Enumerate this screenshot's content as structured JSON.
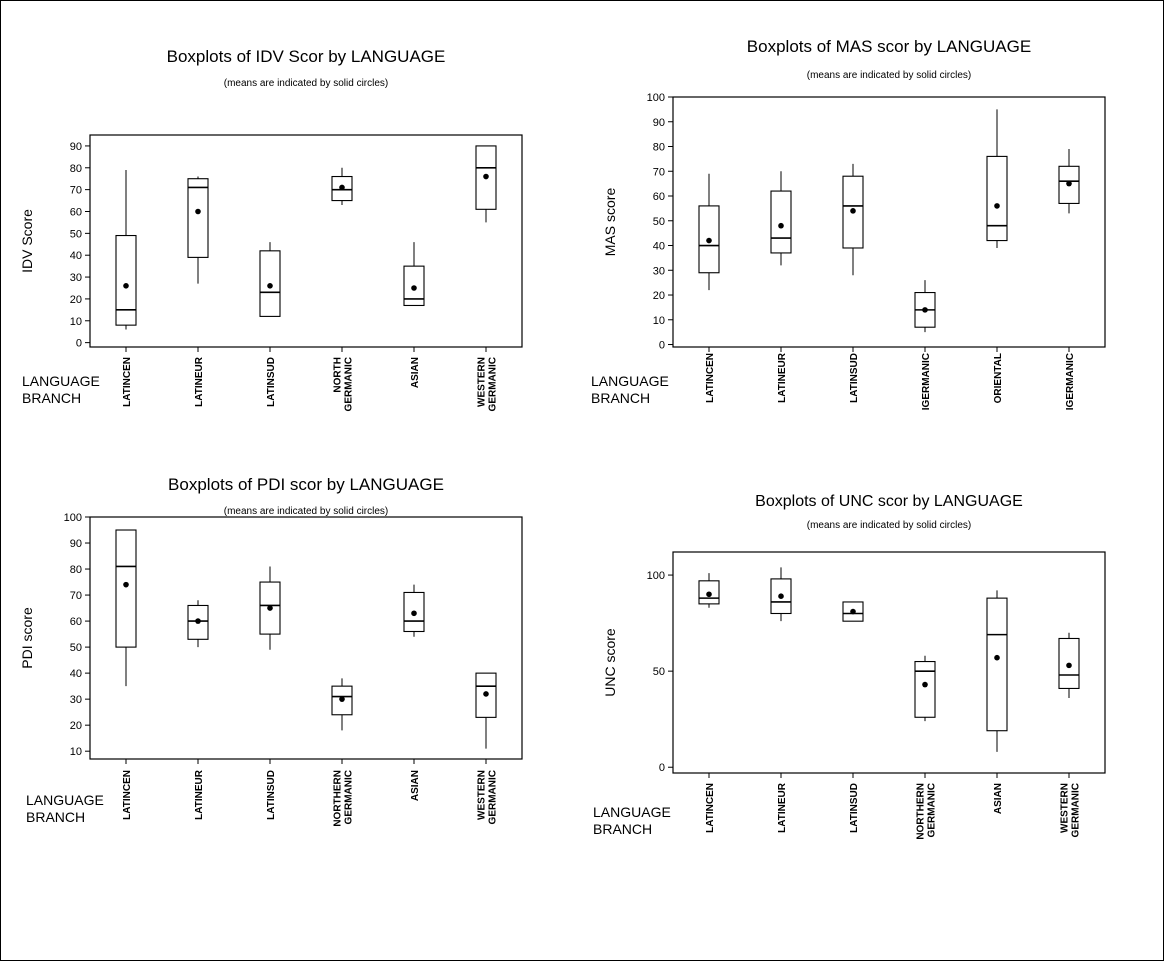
{
  "chart_data": [
    {
      "type": "boxplot",
      "title": "Boxplots of IDV Scor by LANGUAGE",
      "subtitle": "(means are indicated by solid circles)",
      "ylabel": "IDV Score",
      "xlabel_line1": "LANGUAGE",
      "xlabel_line2": "BRANCH",
      "ylim": [
        -2,
        95
      ],
      "yticks": [
        0,
        10,
        20,
        30,
        40,
        50,
        60,
        70,
        80,
        90
      ],
      "categories": [
        [
          "LATINCEN"
        ],
        [
          "LATINEUR"
        ],
        [
          "LATINSUD"
        ],
        [
          "NORTH",
          "GERMANIC"
        ],
        [
          "ASIAN"
        ],
        [
          "WESTERN",
          "GERMANIC"
        ]
      ],
      "boxes": [
        {
          "min": 6,
          "q1": 8,
          "median": 15,
          "q3": 49,
          "max": 79,
          "mean": 26
        },
        {
          "min": 27,
          "q1": 39,
          "median": 71,
          "q3": 75,
          "max": 76,
          "mean": 60
        },
        {
          "min": 12,
          "q1": 12,
          "median": 23,
          "q3": 42,
          "max": 46,
          "mean": 26
        },
        {
          "min": 63,
          "q1": 65,
          "median": 70,
          "q3": 76,
          "max": 80,
          "mean": 71
        },
        {
          "min": 17,
          "q1": 17,
          "median": 20,
          "q3": 35,
          "max": 46,
          "mean": 25
        },
        {
          "min": 55,
          "q1": 61,
          "median": 80,
          "q3": 90,
          "max": 90,
          "mean": 76
        }
      ]
    },
    {
      "type": "boxplot",
      "title": "Boxplots of MAS scor by LANGUAGE",
      "subtitle": "(means are indicated by solid circles)",
      "ylabel": "MAS score",
      "xlabel_line1": "LANGUAGE",
      "xlabel_line2": "BRANCH",
      "ylim": [
        -1,
        100
      ],
      "yticks": [
        0,
        10,
        20,
        30,
        40,
        50,
        60,
        70,
        80,
        90,
        100
      ],
      "categories": [
        [
          "LATINCEN"
        ],
        [
          "LATINEUR"
        ],
        [
          "LATINSUD"
        ],
        [
          "IGERMANIC"
        ],
        [
          "ORIENTAL"
        ],
        [
          "IGERMANIC"
        ]
      ],
      "boxes": [
        {
          "min": 22,
          "q1": 29,
          "median": 40,
          "q3": 56,
          "max": 69,
          "mean": 42
        },
        {
          "min": 32,
          "q1": 37,
          "median": 43,
          "q3": 62,
          "max": 70,
          "mean": 48
        },
        {
          "min": 28,
          "q1": 39,
          "median": 56,
          "q3": 68,
          "max": 73,
          "mean": 54
        },
        {
          "min": 5,
          "q1": 7,
          "median": 14,
          "q3": 21,
          "max": 26,
          "mean": 14
        },
        {
          "min": 39,
          "q1": 42,
          "median": 48,
          "q3": 76,
          "max": 95,
          "mean": 56
        },
        {
          "min": 53,
          "q1": 57,
          "median": 66,
          "q3": 72,
          "max": 79,
          "mean": 65
        }
      ]
    },
    {
      "type": "boxplot",
      "title": "Boxplots of PDI scor by LANGUAGE",
      "subtitle": "(means are indicated by solid circles)",
      "ylabel": "PDI score",
      "xlabel_line1": "LANGUAGE",
      "xlabel_line2": "BRANCH",
      "ylim": [
        7,
        100
      ],
      "yticks": [
        10,
        20,
        30,
        40,
        50,
        60,
        70,
        80,
        90,
        100
      ],
      "categories": [
        [
          "LATINCEN"
        ],
        [
          "LATINEUR"
        ],
        [
          "LATINSUD"
        ],
        [
          "NORTHERN",
          "GERMANIC"
        ],
        [
          "ASIAN"
        ],
        [
          "WESTERN",
          "GERMANIC"
        ]
      ],
      "boxes": [
        {
          "min": 35,
          "q1": 50,
          "median": 81,
          "q3": 95,
          "max": 95,
          "mean": 74
        },
        {
          "min": 50,
          "q1": 53,
          "median": 60,
          "q3": 66,
          "max": 68,
          "mean": 60
        },
        {
          "min": 49,
          "q1": 55,
          "median": 66,
          "q3": 75,
          "max": 81,
          "mean": 65
        },
        {
          "min": 18,
          "q1": 24,
          "median": 31,
          "q3": 35,
          "max": 38,
          "mean": 30
        },
        {
          "min": 54,
          "q1": 56,
          "median": 60,
          "q3": 71,
          "max": 74,
          "mean": 63
        },
        {
          "min": 11,
          "q1": 23,
          "median": 35,
          "q3": 40,
          "max": 40,
          "mean": 32
        }
      ]
    },
    {
      "type": "boxplot",
      "title": "Boxplots of UNC scor by LANGUAGE",
      "subtitle": "(means are indicated by solid circles)",
      "ylabel": "UNC score",
      "xlabel_line1": "LANGUAGE",
      "xlabel_line2": "BRANCH",
      "ylim": [
        -3,
        112
      ],
      "yticks": [
        0,
        50,
        100
      ],
      "categories": [
        [
          "LATINCEN"
        ],
        [
          "LATINEUR"
        ],
        [
          "LATINSUD"
        ],
        [
          "NORTHERN",
          "GERMANIC"
        ],
        [
          "ASIAN"
        ],
        [
          "WESTERN",
          "GERMANIC"
        ]
      ],
      "boxes": [
        {
          "min": 83,
          "q1": 85,
          "median": 88,
          "q3": 97,
          "max": 101,
          "mean": 90
        },
        {
          "min": 76,
          "q1": 80,
          "median": 86,
          "q3": 98,
          "max": 104,
          "mean": 89
        },
        {
          "min": 76,
          "q1": 76,
          "median": 80,
          "q3": 86,
          "max": 86,
          "mean": 81
        },
        {
          "min": 24,
          "q1": 26,
          "median": 50,
          "q3": 55,
          "max": 58,
          "mean": 43
        },
        {
          "min": 8,
          "q1": 19,
          "median": 69,
          "q3": 88,
          "max": 92,
          "mean": 57
        },
        {
          "min": 36,
          "q1": 41,
          "median": 48,
          "q3": 67,
          "max": 70,
          "mean": 53
        }
      ]
    }
  ]
}
